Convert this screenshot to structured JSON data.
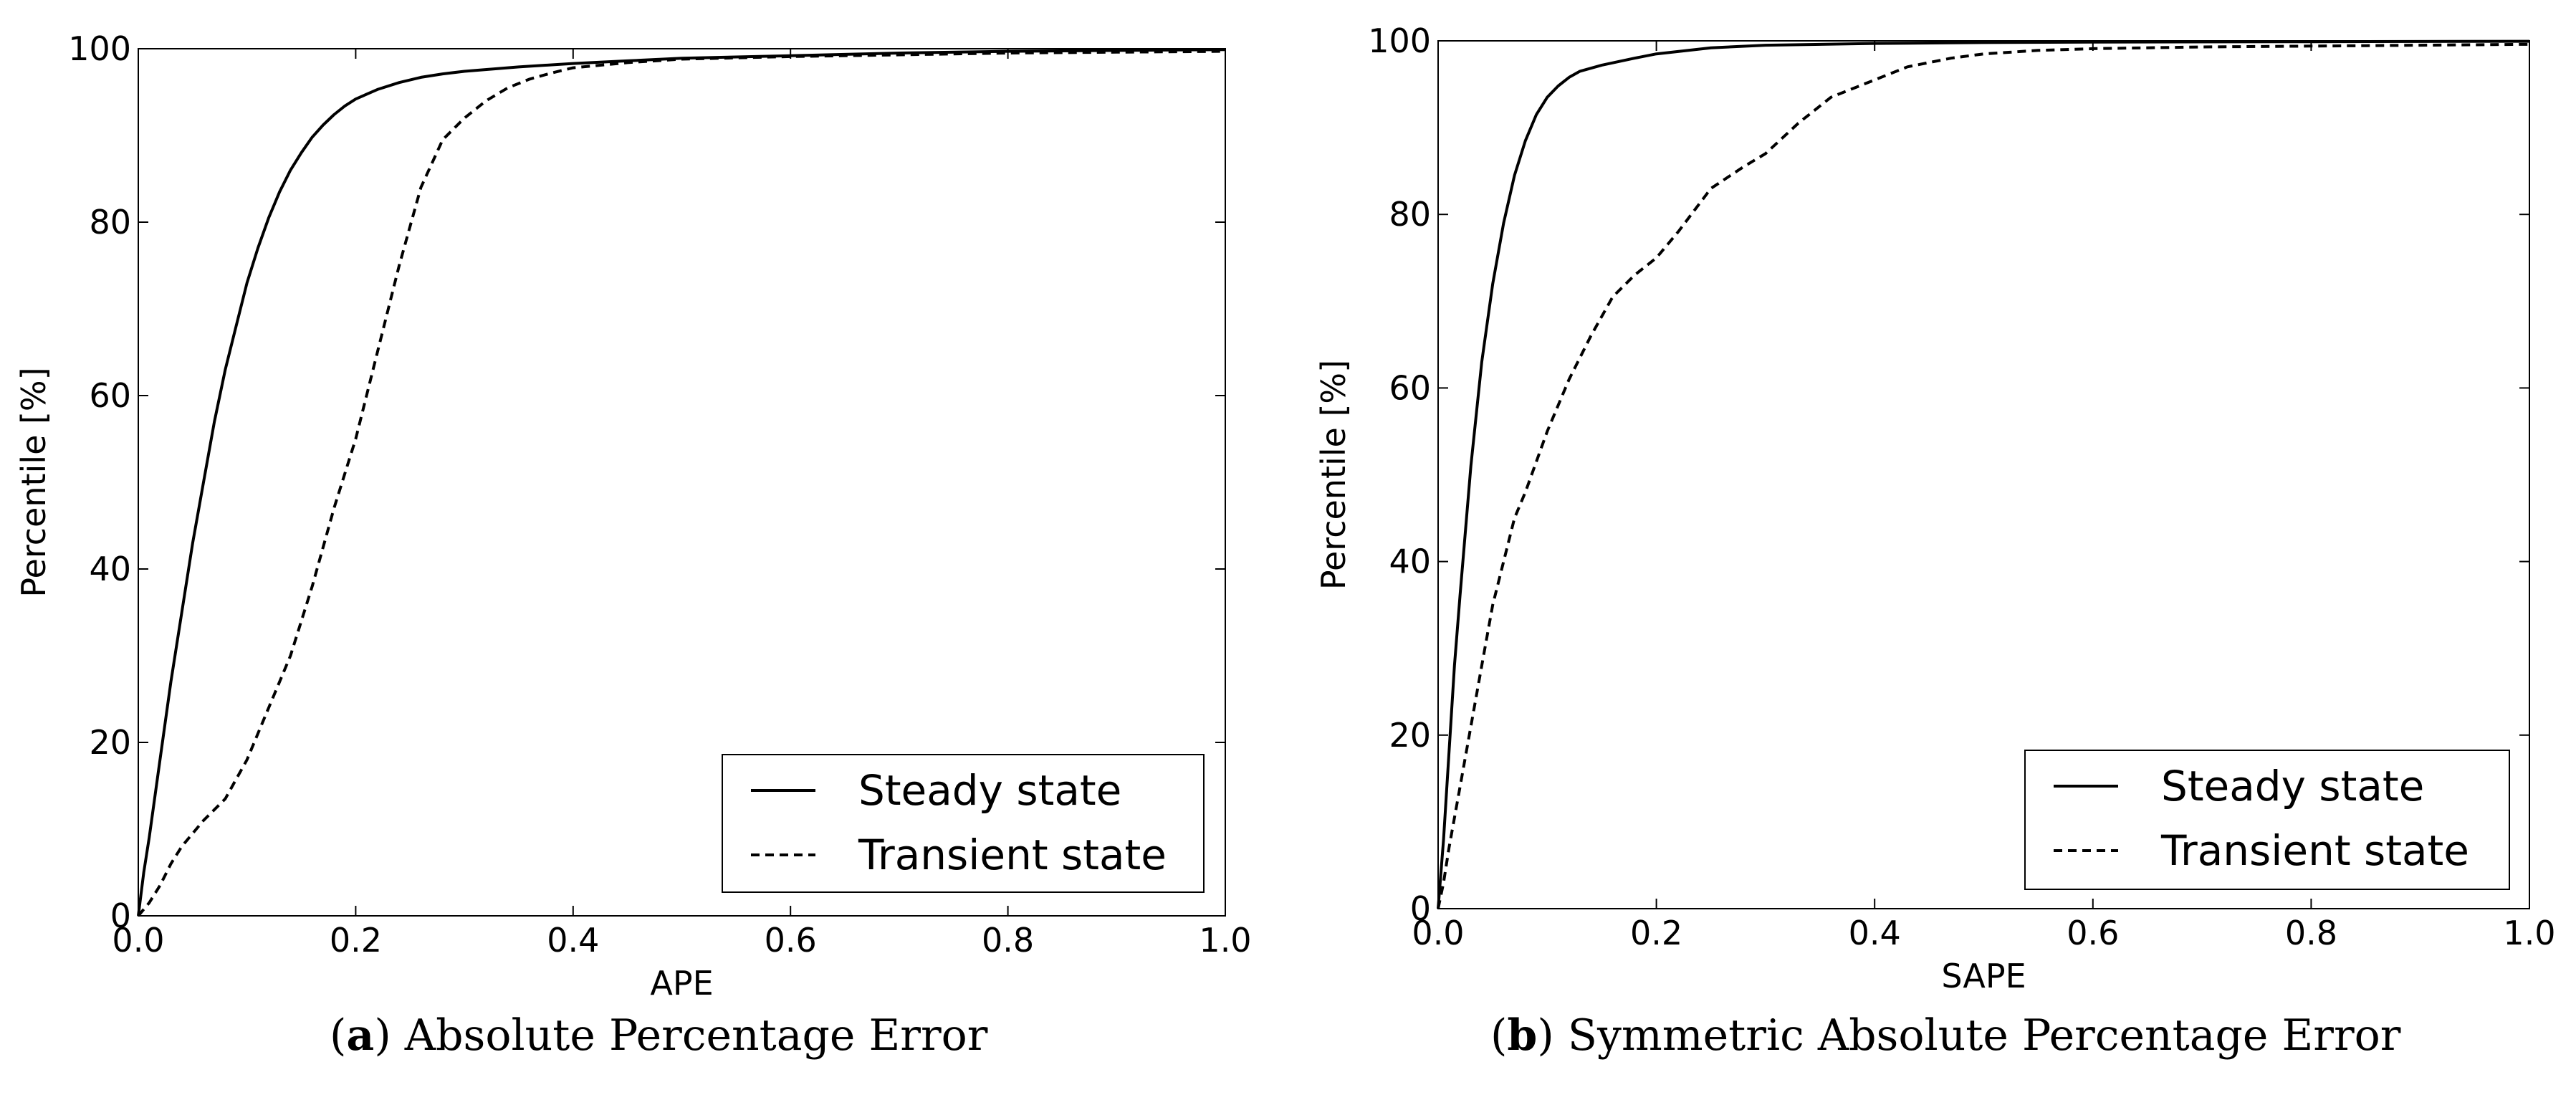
{
  "captions": [
    {
      "tag": "a",
      "text": "Absolute Percentage Error"
    },
    {
      "tag": "b",
      "text": "Symmetric Absolute Percentage Error"
    }
  ],
  "chart_data": [
    {
      "type": "line",
      "xlabel": "APE",
      "ylabel": "Percentile [%]",
      "xlim": [
        0.0,
        1.0
      ],
      "ylim": [
        0,
        100
      ],
      "xticks": [
        "0.0",
        "0.2",
        "0.4",
        "0.6",
        "0.8",
        "1.0"
      ],
      "yticks": [
        "0",
        "20",
        "40",
        "60",
        "80",
        "100"
      ],
      "grid": false,
      "legend_position": "bottom-right",
      "series": [
        {
          "name": "Steady state",
          "style": "solid",
          "x": [
            0.0,
            0.005,
            0.01,
            0.02,
            0.03,
            0.04,
            0.05,
            0.06,
            0.07,
            0.08,
            0.09,
            0.1,
            0.11,
            0.12,
            0.13,
            0.14,
            0.15,
            0.16,
            0.17,
            0.18,
            0.19,
            0.2,
            0.22,
            0.24,
            0.26,
            0.28,
            0.3,
            0.35,
            0.4,
            0.45,
            0.5,
            0.6,
            0.7,
            0.8,
            0.9,
            1.0
          ],
          "y": [
            0,
            5,
            9,
            18,
            27,
            35,
            43,
            50,
            57,
            63,
            68,
            73,
            77,
            80.5,
            83.5,
            86,
            88,
            89.8,
            91.2,
            92.4,
            93.4,
            94.2,
            95.3,
            96.1,
            96.7,
            97.1,
            97.4,
            97.9,
            98.3,
            98.6,
            98.9,
            99.2,
            99.5,
            99.7,
            99.8,
            99.9
          ]
        },
        {
          "name": "Transient state",
          "style": "dashed",
          "x": [
            0.0,
            0.01,
            0.02,
            0.03,
            0.04,
            0.06,
            0.08,
            0.1,
            0.12,
            0.14,
            0.16,
            0.18,
            0.2,
            0.22,
            0.24,
            0.26,
            0.28,
            0.3,
            0.32,
            0.34,
            0.36,
            0.38,
            0.4,
            0.45,
            0.5,
            0.6,
            0.7,
            0.8,
            0.9,
            1.0
          ],
          "y": [
            0,
            1.5,
            3.5,
            6,
            8,
            11,
            13.5,
            18,
            24,
            30,
            38,
            47,
            55,
            65,
            75,
            84,
            89.5,
            92,
            94,
            95.5,
            96.5,
            97.2,
            97.8,
            98.4,
            98.8,
            99.1,
            99.3,
            99.5,
            99.6,
            99.7
          ]
        }
      ]
    },
    {
      "type": "line",
      "xlabel": "SAPE",
      "ylabel": "Percentile [%]",
      "xlim": [
        0.0,
        1.0
      ],
      "ylim": [
        0,
        100
      ],
      "xticks": [
        "0.0",
        "0.2",
        "0.4",
        "0.6",
        "0.8",
        "1.0"
      ],
      "yticks": [
        "0",
        "20",
        "40",
        "60",
        "80",
        "100"
      ],
      "grid": false,
      "legend_position": "bottom-right",
      "series": [
        {
          "name": "Steady state",
          "style": "solid",
          "x": [
            0.0,
            0.005,
            0.01,
            0.015,
            0.02,
            0.03,
            0.04,
            0.05,
            0.06,
            0.07,
            0.08,
            0.09,
            0.1,
            0.11,
            0.12,
            0.13,
            0.15,
            0.18,
            0.2,
            0.25,
            0.3,
            0.4,
            0.5,
            0.6,
            0.8,
            1.0
          ],
          "y": [
            0,
            8,
            18,
            28,
            36,
            51,
            63,
            72,
            79,
            84.5,
            88.5,
            91.5,
            93.5,
            94.8,
            95.8,
            96.5,
            97.2,
            98,
            98.5,
            99.2,
            99.5,
            99.7,
            99.8,
            99.85,
            99.9,
            99.95
          ]
        },
        {
          "name": "Transient state",
          "style": "dashed",
          "x": [
            0.0,
            0.005,
            0.01,
            0.02,
            0.03,
            0.04,
            0.05,
            0.06,
            0.07,
            0.08,
            0.1,
            0.12,
            0.14,
            0.16,
            0.18,
            0.2,
            0.22,
            0.25,
            0.28,
            0.3,
            0.33,
            0.36,
            0.38,
            0.4,
            0.43,
            0.47,
            0.5,
            0.55,
            0.6,
            0.7,
            0.8,
            0.9,
            1.0
          ],
          "y": [
            0,
            3,
            7,
            14,
            21,
            28,
            35,
            40,
            45,
            48,
            55,
            61,
            66,
            70.5,
            73,
            75,
            78,
            83,
            85.5,
            87,
            90.5,
            93.5,
            94.5,
            95.5,
            97,
            98,
            98.5,
            98.9,
            99.1,
            99.3,
            99.4,
            99.5,
            99.6
          ]
        }
      ]
    }
  ]
}
